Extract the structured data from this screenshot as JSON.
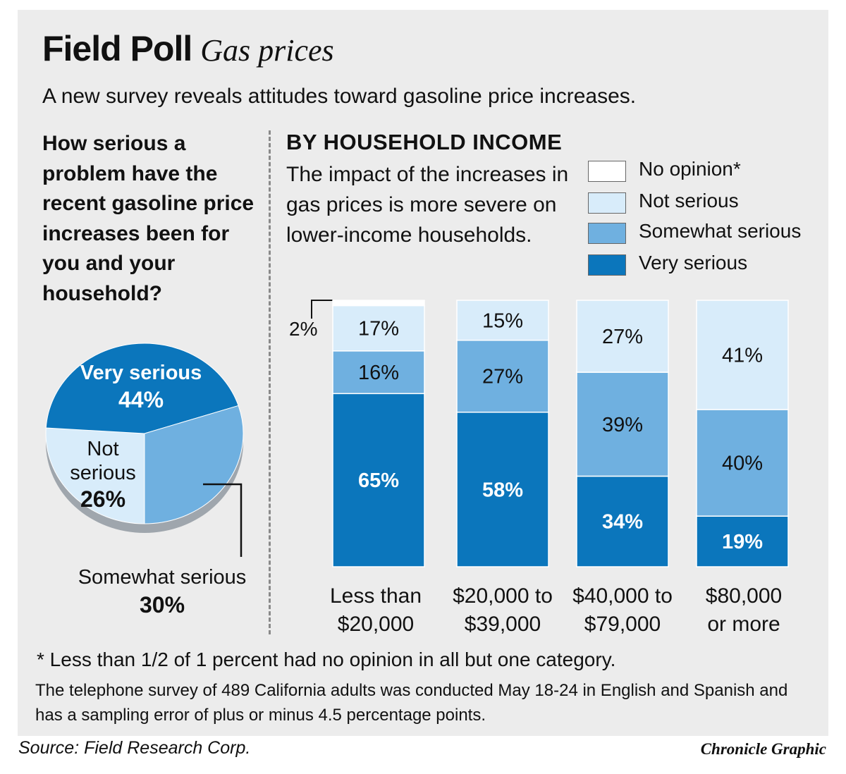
{
  "header": {
    "title": "Field Poll",
    "subtitle": "Gas prices",
    "intro": "A new survey reveals attitudes toward gasoline price increases."
  },
  "colors": {
    "very_serious": "#0b76bc",
    "somewhat_serious": "#6fb0e0",
    "not_serious": "#d8ecfa",
    "no_opinion": "#ffffff",
    "panel": "#ececec"
  },
  "pie_panel": {
    "question": "How serious a problem have the recent gasoline price increases been for you and your household?",
    "labels": {
      "very": "Very serious",
      "not": "Not serious",
      "somewhat": "Somewhat serious"
    },
    "values_text": {
      "very": "44%",
      "not": "26%",
      "somewhat": "30%"
    }
  },
  "bar_panel": {
    "heading": "BY HOUSEHOLD INCOME",
    "description": "The impact of the increases in gas prices is more severe on lower-income households.",
    "legend": [
      {
        "label": "No opinion*",
        "color": "#ffffff"
      },
      {
        "label": "Not serious",
        "color": "#d8ecfa"
      },
      {
        "label": "Somewhat serious",
        "color": "#6fb0e0"
      },
      {
        "label": "Very serious",
        "color": "#0b76bc"
      }
    ],
    "categories": [
      {
        "line1": "Less than",
        "line2": "$20,000"
      },
      {
        "line1": "$20,000 to",
        "line2": "$39,000"
      },
      {
        "line1": "$40,000 to",
        "line2": "$79,000"
      },
      {
        "line1": "$80,000",
        "line2": "or more"
      }
    ],
    "callout": "2%"
  },
  "chart_data": [
    {
      "type": "pie",
      "labels": [
        "Very serious",
        "Somewhat serious",
        "Not serious"
      ],
      "values": [
        44,
        30,
        26
      ],
      "colors": [
        "#0b76bc",
        "#6fb0e0",
        "#d8ecfa"
      ]
    },
    {
      "type": "bar",
      "stacked": true,
      "categories": [
        "Less than $20,000",
        "$20,000 to $39,000",
        "$40,000 to $79,000",
        "$80,000 or more"
      ],
      "series": [
        {
          "name": "Very serious",
          "values": [
            65,
            58,
            34,
            19
          ],
          "labels": [
            "65%",
            "58%",
            "34%",
            "19%"
          ],
          "color": "#0b76bc"
        },
        {
          "name": "Somewhat serious",
          "values": [
            16,
            27,
            39,
            40
          ],
          "labels": [
            "16%",
            "27%",
            "39%",
            "40%"
          ],
          "color": "#6fb0e0"
        },
        {
          "name": "Not serious",
          "values": [
            17,
            15,
            27,
            41
          ],
          "labels": [
            "17%",
            "15%",
            "27%",
            "41%"
          ],
          "color": "#d8ecfa"
        },
        {
          "name": "No opinion*",
          "values": [
            2,
            0,
            0,
            0
          ],
          "labels": [
            "2%",
            "",
            "",
            ""
          ],
          "color": "#ffffff"
        }
      ],
      "ylim": [
        0,
        100
      ],
      "legend": "top-right"
    }
  ],
  "footer": {
    "footnote": "* Less than 1/2 of 1 percent had no opinion in all but one category.",
    "methodology": "The telephone survey of 489 California adults was conducted May 18-24 in English and Spanish and has a sampling error of plus or minus 4.5 percentage points.",
    "source": "Source: Field Research Corp.",
    "credit": "Chronicle Graphic"
  }
}
